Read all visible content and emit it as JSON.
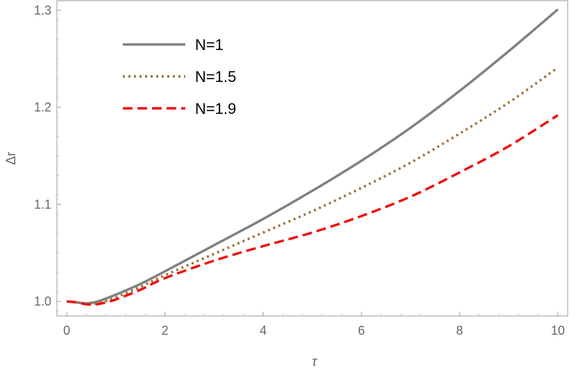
{
  "chart_data": {
    "type": "line",
    "title": "",
    "xlabel": "τ",
    "ylabel": "Δr",
    "xlim": [
      -0.2,
      10.2
    ],
    "ylim": [
      0.985,
      1.31
    ],
    "xticks": [
      0,
      2,
      4,
      6,
      8,
      10
    ],
    "xtick_labels": [
      "0",
      "2",
      "4",
      "6",
      "8",
      "10"
    ],
    "yticks": [
      1.0,
      1.1,
      1.2,
      1.3
    ],
    "ytick_labels": [
      "1.0",
      "1.1",
      "1.2",
      "1.3"
    ],
    "grid": false,
    "frame": true,
    "legend_position": "top-left",
    "series": [
      {
        "name": "N=1",
        "color": "#808080",
        "style": "solid",
        "x": [
          0,
          0.2,
          0.4,
          0.6,
          0.8,
          1.0,
          1.5,
          2,
          3,
          4,
          5,
          6,
          7,
          8,
          9,
          10
        ],
        "y": [
          1.0,
          0.999,
          0.998,
          0.9995,
          1.003,
          1.007,
          1.018,
          1.031,
          1.058,
          1.085,
          1.114,
          1.145,
          1.179,
          1.217,
          1.258,
          1.301
        ]
      },
      {
        "name": "N=1.5",
        "color": "#a0703a",
        "style": "dotted",
        "x": [
          0,
          0.2,
          0.4,
          0.6,
          0.8,
          1.0,
          1.5,
          2,
          3,
          4,
          5,
          6,
          7,
          8,
          9,
          10
        ],
        "y": [
          1.0,
          0.999,
          0.9975,
          0.998,
          1.0005,
          1.004,
          1.015,
          1.027,
          1.049,
          1.071,
          1.093,
          1.117,
          1.143,
          1.173,
          1.205,
          1.241
        ]
      },
      {
        "name": "N=1.9",
        "color": "#ee1111",
        "style": "dashed",
        "x": [
          0,
          0.2,
          0.4,
          0.6,
          0.8,
          1.0,
          1.5,
          2,
          3,
          4,
          5,
          6,
          7,
          8,
          9,
          10
        ],
        "y": [
          1.0,
          0.999,
          0.997,
          0.997,
          0.999,
          1.002,
          1.012,
          1.024,
          1.042,
          1.057,
          1.071,
          1.088,
          1.108,
          1.133,
          1.16,
          1.192
        ]
      }
    ]
  }
}
